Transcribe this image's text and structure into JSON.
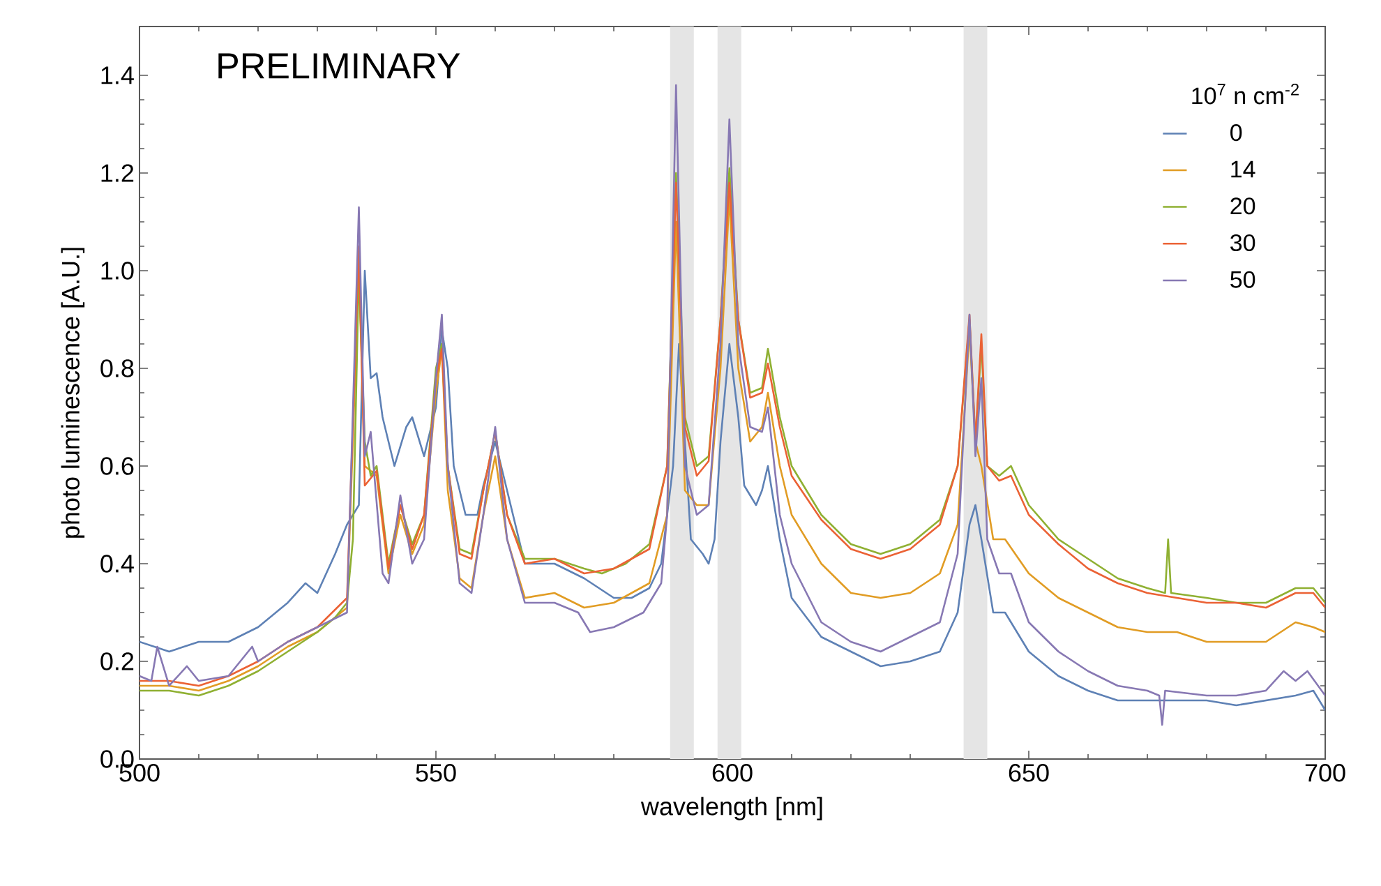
{
  "chart_data": {
    "type": "line",
    "xlabel": "wavelength [nm]",
    "ylabel": "photo luminescence [A.U.]",
    "legend_title": "10$^{7}$ n cm$^{-2}$",
    "annotations": [
      "PRELIMINARY"
    ],
    "xlim": [
      500,
      700
    ],
    "xticks": [
      500,
      550,
      600,
      650,
      700
    ],
    "ylim": [
      0,
      1.5
    ],
    "yticks": [
      {
        "value": 0,
        "label": "0.0"
      },
      {
        "value": 0.2,
        "label": "0.2"
      },
      {
        "value": 0.4,
        "label": "0.4"
      },
      {
        "value": 0.6,
        "label": "0.6"
      },
      {
        "value": 0.8,
        "label": "0.8"
      },
      {
        "value": 1.0,
        "label": "1.0"
      },
      {
        "value": 1.2,
        "label": "1.2"
      },
      {
        "value": 1.4,
        "label": "1.4"
      }
    ],
    "tick_labels": [
      "x",
      "y"
    ],
    "legend": "top right",
    "grid": false,
    "marker": "none",
    "line_style": "solid",
    "bands": [
      {
        "axis": "x",
        "from": 589.5,
        "to": 593.5,
        "color": "#e5e5e5"
      },
      {
        "axis": "x",
        "from": 597.5,
        "to": 601.5,
        "color": "#e5e5e5"
      },
      {
        "axis": "x",
        "from": 639,
        "to": 643,
        "color": "#e5e5e5"
      }
    ],
    "series": [
      {
        "name": "0",
        "color": "#5e81b5",
        "x": [
          500,
          505,
          510,
          515,
          520,
          525,
          528,
          530,
          533,
          535,
          537,
          538,
          539,
          540,
          541,
          543,
          545,
          546,
          548,
          550,
          551,
          552,
          553,
          555,
          557,
          558,
          560,
          562,
          565,
          570,
          575,
          580,
          583,
          586,
          588,
          590,
          591,
          593,
          595,
          596,
          597,
          598,
          599.5,
          601,
          602,
          604,
          605,
          606,
          608,
          610,
          615,
          620,
          625,
          630,
          635,
          638,
          640,
          641,
          642,
          644,
          646,
          650,
          655,
          660,
          665,
          670,
          675,
          680,
          685,
          690,
          695,
          698,
          700
        ],
        "values": [
          0.24,
          0.22,
          0.24,
          0.24,
          0.27,
          0.32,
          0.36,
          0.34,
          0.42,
          0.48,
          0.52,
          1.0,
          0.78,
          0.79,
          0.7,
          0.6,
          0.68,
          0.7,
          0.62,
          0.72,
          0.88,
          0.8,
          0.6,
          0.5,
          0.5,
          0.56,
          0.65,
          0.55,
          0.4,
          0.4,
          0.37,
          0.33,
          0.33,
          0.35,
          0.4,
          0.6,
          0.85,
          0.45,
          0.42,
          0.4,
          0.45,
          0.65,
          0.85,
          0.7,
          0.56,
          0.52,
          0.55,
          0.6,
          0.45,
          0.33,
          0.25,
          0.22,
          0.19,
          0.2,
          0.22,
          0.3,
          0.48,
          0.52,
          0.45,
          0.3,
          0.3,
          0.22,
          0.17,
          0.14,
          0.12,
          0.12,
          0.12,
          0.12,
          0.11,
          0.12,
          0.13,
          0.14,
          0.1
        ]
      },
      {
        "name": "14",
        "color": "#e19c24",
        "x": [
          500,
          505,
          510,
          515,
          520,
          525,
          530,
          535,
          537,
          538,
          540,
          542,
          544,
          546,
          548,
          550,
          551,
          552,
          554,
          556,
          558,
          560,
          562,
          565,
          570,
          575,
          580,
          586,
          589,
          590.5,
          592,
          594,
          596,
          598,
          599.5,
          601,
          603,
          605,
          606,
          608,
          610,
          615,
          620,
          625,
          630,
          635,
          638,
          640,
          641,
          642,
          644,
          646,
          650,
          655,
          660,
          665,
          670,
          675,
          680,
          685,
          690,
          695,
          698,
          700
        ],
        "values": [
          0.15,
          0.15,
          0.14,
          0.16,
          0.19,
          0.23,
          0.26,
          0.31,
          1.0,
          0.6,
          0.58,
          0.38,
          0.5,
          0.42,
          0.48,
          0.75,
          0.84,
          0.55,
          0.37,
          0.35,
          0.5,
          0.62,
          0.45,
          0.33,
          0.34,
          0.31,
          0.32,
          0.36,
          0.5,
          1.1,
          0.55,
          0.52,
          0.52,
          0.8,
          1.15,
          0.8,
          0.65,
          0.68,
          0.75,
          0.6,
          0.5,
          0.4,
          0.34,
          0.33,
          0.34,
          0.38,
          0.48,
          0.88,
          0.65,
          0.6,
          0.45,
          0.45,
          0.38,
          0.33,
          0.3,
          0.27,
          0.26,
          0.26,
          0.24,
          0.24,
          0.24,
          0.28,
          0.27,
          0.26
        ]
      },
      {
        "name": "20",
        "color": "#8fb032",
        "x": [
          500,
          505,
          510,
          515,
          520,
          525,
          530,
          533,
          535,
          536,
          537,
          538,
          539,
          540,
          542,
          544,
          546,
          548,
          550,
          551,
          552,
          554,
          556,
          558,
          560,
          562,
          565,
          570,
          575,
          578,
          582,
          586,
          589,
          590.5,
          592,
          594,
          596,
          598,
          599.5,
          601,
          603,
          605,
          606,
          608,
          610,
          615,
          620,
          625,
          630,
          635,
          638,
          640,
          641,
          642,
          643,
          645,
          647,
          650,
          655,
          660,
          665,
          670,
          673,
          673.5,
          674,
          680,
          685,
          690,
          695,
          698,
          700
        ],
        "values": [
          0.14,
          0.14,
          0.13,
          0.15,
          0.18,
          0.22,
          0.26,
          0.29,
          0.32,
          0.45,
          1.0,
          0.65,
          0.58,
          0.6,
          0.4,
          0.52,
          0.44,
          0.5,
          0.8,
          0.85,
          0.6,
          0.43,
          0.42,
          0.55,
          0.67,
          0.5,
          0.41,
          0.41,
          0.39,
          0.38,
          0.4,
          0.44,
          0.6,
          1.2,
          0.7,
          0.6,
          0.62,
          0.9,
          1.21,
          0.9,
          0.75,
          0.76,
          0.84,
          0.7,
          0.6,
          0.5,
          0.44,
          0.42,
          0.44,
          0.49,
          0.6,
          0.9,
          0.65,
          0.85,
          0.6,
          0.58,
          0.6,
          0.52,
          0.45,
          0.41,
          0.37,
          0.35,
          0.34,
          0.45,
          0.34,
          0.33,
          0.32,
          0.32,
          0.35,
          0.35,
          0.32
        ]
      },
      {
        "name": "30",
        "color": "#eb6235",
        "x": [
          500,
          505,
          510,
          515,
          520,
          525,
          530,
          535,
          537,
          538,
          540,
          542,
          544,
          546,
          548,
          550,
          551,
          552,
          554,
          556,
          558,
          560,
          562,
          565,
          570,
          575,
          580,
          586,
          589,
          590.5,
          592,
          594,
          596,
          598,
          599.5,
          601,
          603,
          605,
          606,
          608,
          610,
          615,
          620,
          625,
          630,
          635,
          638,
          640,
          641,
          642,
          643,
          645,
          647,
          650,
          655,
          660,
          665,
          670,
          675,
          680,
          685,
          690,
          695,
          698,
          700
        ],
        "values": [
          0.16,
          0.16,
          0.15,
          0.17,
          0.2,
          0.24,
          0.27,
          0.33,
          1.05,
          0.56,
          0.59,
          0.39,
          0.52,
          0.43,
          0.5,
          0.78,
          0.84,
          0.6,
          0.42,
          0.41,
          0.55,
          0.67,
          0.5,
          0.4,
          0.41,
          0.38,
          0.39,
          0.43,
          0.6,
          1.18,
          0.68,
          0.58,
          0.61,
          0.9,
          1.18,
          0.9,
          0.74,
          0.75,
          0.81,
          0.68,
          0.58,
          0.49,
          0.43,
          0.41,
          0.43,
          0.48,
          0.6,
          0.91,
          0.65,
          0.87,
          0.6,
          0.57,
          0.58,
          0.5,
          0.44,
          0.39,
          0.36,
          0.34,
          0.33,
          0.32,
          0.32,
          0.31,
          0.34,
          0.34,
          0.31
        ]
      },
      {
        "name": "50",
        "color": "#8778b3",
        "x": [
          500,
          502,
          503,
          505,
          508,
          510,
          515,
          519,
          520,
          525,
          530,
          535,
          537,
          538,
          539,
          541,
          542,
          544,
          546,
          548,
          550,
          551,
          552,
          554,
          556,
          558,
          560,
          562,
          565,
          570,
          574,
          576,
          580,
          585,
          588,
          589,
          590.5,
          592,
          594,
          596,
          598,
          599.5,
          601,
          603,
          605,
          606,
          608,
          610,
          615,
          620,
          625,
          630,
          635,
          638,
          640,
          641,
          642,
          643,
          645,
          647,
          650,
          655,
          660,
          665,
          670,
          672,
          672.5,
          673,
          680,
          685,
          690,
          693,
          695,
          697,
          700
        ],
        "values": [
          0.17,
          0.16,
          0.23,
          0.15,
          0.19,
          0.16,
          0.17,
          0.23,
          0.2,
          0.24,
          0.27,
          0.3,
          1.13,
          0.62,
          0.67,
          0.38,
          0.36,
          0.54,
          0.4,
          0.45,
          0.78,
          0.91,
          0.6,
          0.36,
          0.34,
          0.5,
          0.68,
          0.45,
          0.32,
          0.32,
          0.3,
          0.26,
          0.27,
          0.3,
          0.36,
          0.5,
          1.38,
          0.6,
          0.5,
          0.52,
          0.85,
          1.31,
          0.85,
          0.68,
          0.67,
          0.72,
          0.5,
          0.4,
          0.28,
          0.24,
          0.22,
          0.25,
          0.28,
          0.42,
          0.91,
          0.62,
          0.78,
          0.45,
          0.38,
          0.38,
          0.28,
          0.22,
          0.18,
          0.15,
          0.14,
          0.13,
          0.07,
          0.14,
          0.13,
          0.13,
          0.14,
          0.18,
          0.16,
          0.18,
          0.13
        ]
      }
    ]
  }
}
